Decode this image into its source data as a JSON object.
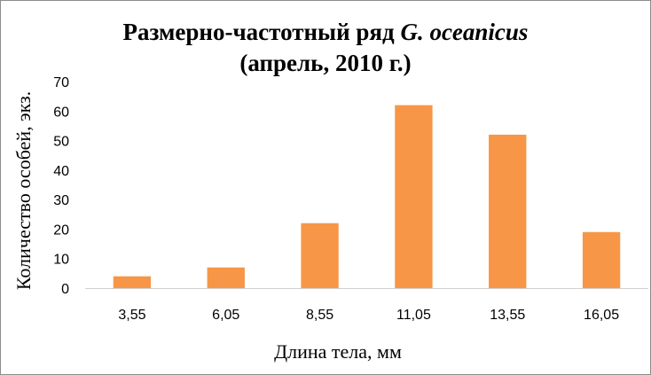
{
  "chart_data": {
    "type": "bar",
    "title_main": "Размерно-частотный ряд ",
    "title_species": "G. oceanicus",
    "title_line2": "(апрель, 2010 г.)",
    "xlabel": "Длина тела, мм",
    "ylabel": "Количество особей, экз.",
    "categories": [
      "3,55",
      "6,05",
      "8,55",
      "11,05",
      "13,55",
      "16,05"
    ],
    "values": [
      4,
      7,
      22,
      62,
      52,
      19
    ],
    "ylim": [
      0,
      70
    ],
    "yticks": [
      "0",
      "10",
      "20",
      "30",
      "40",
      "50",
      "60",
      "70"
    ],
    "grid": false,
    "legend": "none",
    "bar_color": "#F79646"
  }
}
